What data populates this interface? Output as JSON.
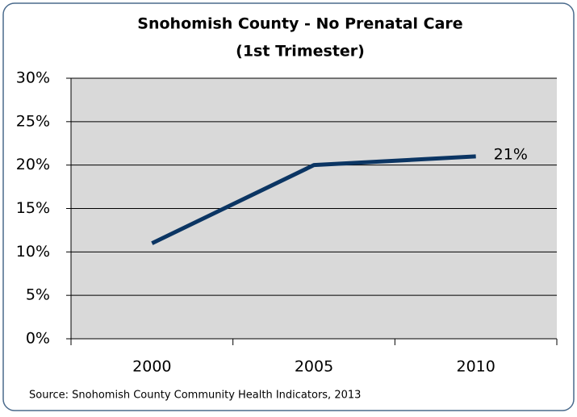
{
  "chart_data": {
    "type": "line",
    "title": [
      "Snohomish County - No Prenatal Care",
      "(1st Trimester)"
    ],
    "categories": [
      "2000",
      "2005",
      "2010"
    ],
    "series": [
      {
        "name": "No Prenatal Care (1st Trimester)",
        "color": "#0b3563",
        "values": [
          11,
          20,
          21
        ],
        "value_labels": [
          null,
          null,
          "21%"
        ]
      }
    ],
    "ylim": [
      0,
      30
    ],
    "yticks": [
      {
        "value": 0,
        "label": "0%"
      },
      {
        "value": 5,
        "label": "5%"
      },
      {
        "value": 10,
        "label": "10%"
      },
      {
        "value": 15,
        "label": "15%"
      },
      {
        "value": 20,
        "label": "20%"
      },
      {
        "value": 25,
        "label": "25%"
      },
      {
        "value": 30,
        "label": "30%"
      }
    ],
    "grid": true,
    "source": "Source:  Snohomish County Community Health Indicators, 2013"
  }
}
